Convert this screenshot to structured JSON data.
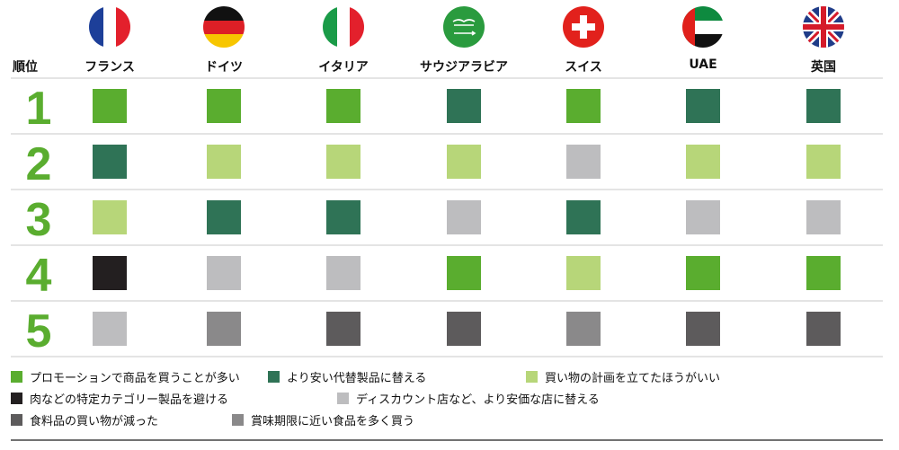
{
  "chart_data": {
    "type": "table",
    "rank_header": "順位",
    "countries": [
      "フランス",
      "ドイツ",
      "イタリア",
      "サウジアラビア",
      "スイス",
      "UAE",
      "英国"
    ],
    "ranks": [
      "1",
      "2",
      "3",
      "4",
      "5"
    ],
    "categories": [
      {
        "key": "promo",
        "label": "プロモーションで商品を買うことが多い",
        "color": "#5aad2f"
      },
      {
        "key": "cheaper",
        "label": "より安い代替製品に替える",
        "color": "#2f7356"
      },
      {
        "key": "plan",
        "label": "買い物の計画を立てたほうがいい",
        "color": "#b7d679"
      },
      {
        "key": "avoid_meat",
        "label": "肉などの特定カテゴリー製品を避ける",
        "color": "#231f20"
      },
      {
        "key": "discount",
        "label": "ディスカウント店など、より安価な店に替える",
        "color": "#bdbdbf"
      },
      {
        "key": "less_food",
        "label": "食料品の買い物が減った",
        "color": "#5d5b5c"
      },
      {
        "key": "expiry",
        "label": "賞味期限に近い食品を多く買う",
        "color": "#8a898a"
      }
    ],
    "grid": [
      [
        "promo",
        "promo",
        "promo",
        "cheaper",
        "promo",
        "cheaper",
        "cheaper"
      ],
      [
        "cheaper",
        "plan",
        "plan",
        "plan",
        "discount",
        "plan",
        "plan"
      ],
      [
        "plan",
        "cheaper",
        "cheaper",
        "discount",
        "cheaper",
        "discount",
        "discount"
      ],
      [
        "avoid_meat",
        "discount",
        "discount",
        "promo",
        "plan",
        "promo",
        "promo"
      ],
      [
        "discount",
        "expiry",
        "less_food",
        "less_food",
        "expiry",
        "less_food",
        "less_food"
      ]
    ],
    "flags": [
      "france-flag-icon",
      "germany-flag-icon",
      "italy-flag-icon",
      "saudi-arabia-flag-icon",
      "switzerland-flag-icon",
      "uae-flag-icon",
      "uk-flag-icon"
    ]
  }
}
